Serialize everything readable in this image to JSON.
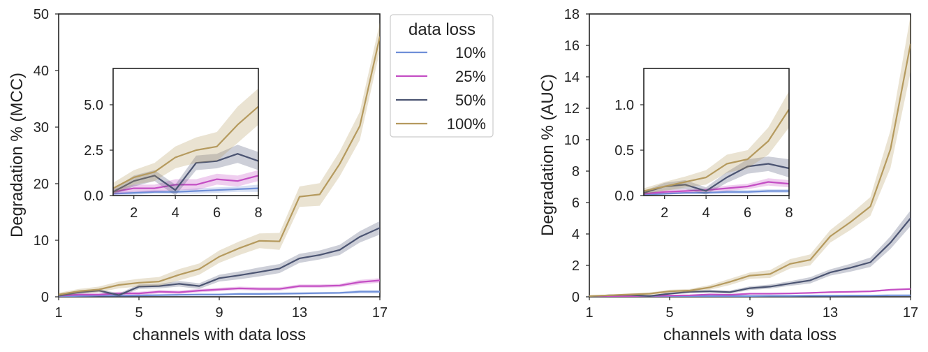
{
  "chart_data": [
    {
      "type": "line",
      "title": "",
      "xlabel": "channels with data loss",
      "ylabel": "Degradation % (MCC)",
      "xlim": [
        1,
        17
      ],
      "ylim": [
        0,
        50
      ],
      "xticks": [
        1,
        5,
        9,
        13,
        17
      ],
      "yticks": [
        0,
        10,
        20,
        30,
        40,
        50
      ],
      "x": [
        1,
        2,
        3,
        4,
        5,
        6,
        7,
        8,
        9,
        10,
        11,
        12,
        13,
        14,
        15,
        16,
        17
      ],
      "series": [
        {
          "name": "10%",
          "color": "#6f8fd8",
          "values": [
            0.1,
            0.15,
            0.2,
            0.2,
            0.25,
            0.3,
            0.35,
            0.4,
            0.4,
            0.5,
            0.5,
            0.55,
            0.6,
            0.65,
            0.7,
            0.9,
            0.9
          ],
          "band": [
            0.1,
            0.1,
            0.1,
            0.1,
            0.15,
            0.15,
            0.15,
            0.2,
            0.2,
            0.2,
            0.2,
            0.2,
            0.2,
            0.2,
            0.2,
            0.3,
            0.3
          ]
        },
        {
          "name": "25%",
          "color": "#c44ec4",
          "values": [
            0.2,
            0.4,
            0.4,
            0.6,
            0.6,
            0.9,
            0.8,
            1.1,
            1.3,
            1.5,
            1.4,
            1.4,
            1.9,
            1.9,
            2.0,
            2.6,
            2.9
          ],
          "band": [
            0.15,
            0.2,
            0.2,
            0.3,
            0.3,
            0.3,
            0.3,
            0.3,
            0.3,
            0.3,
            0.3,
            0.3,
            0.3,
            0.3,
            0.3,
            0.4,
            0.4
          ]
        },
        {
          "name": "50%",
          "color": "#4b5472",
          "values": [
            0.2,
            0.8,
            1.1,
            0.3,
            1.8,
            1.9,
            2.3,
            1.9,
            3.3,
            3.8,
            4.4,
            5.0,
            6.8,
            7.4,
            8.3,
            10.6,
            12.2
          ],
          "band": [
            0.15,
            0.3,
            0.3,
            0.3,
            0.4,
            0.4,
            0.5,
            0.5,
            0.6,
            0.7,
            0.8,
            0.8,
            0.8,
            0.8,
            0.9,
            1.0,
            1.2
          ]
        },
        {
          "name": "100%",
          "color": "#b59a5e",
          "values": [
            0.4,
            1.0,
            1.3,
            2.1,
            2.5,
            2.7,
            3.9,
            4.9,
            7.1,
            8.6,
            9.9,
            9.8,
            17.7,
            18.1,
            23.5,
            30.2,
            46.0
          ],
          "band": [
            0.3,
            0.4,
            0.5,
            0.6,
            0.7,
            0.8,
            1.0,
            1.0,
            1.1,
            1.2,
            1.3,
            1.5,
            1.8,
            2.0,
            2.2,
            2.5,
            2.5
          ]
        }
      ],
      "inset": {
        "xlim": [
          1,
          8
        ],
        "ylim": [
          0,
          7
        ],
        "xticks": [
          2,
          4,
          6,
          8
        ],
        "yticks": [
          0,
          2.5,
          5.0
        ],
        "ytick_labels": [
          "0.0",
          "2.5",
          "5.0"
        ]
      }
    },
    {
      "type": "line",
      "title": "",
      "xlabel": "channels with data loss",
      "ylabel": "Degradation % (AUC)",
      "xlim": [
        1,
        17
      ],
      "ylim": [
        0,
        18
      ],
      "xticks": [
        1,
        5,
        9,
        13,
        17
      ],
      "yticks": [
        0,
        2,
        4,
        6,
        8,
        10,
        12,
        14,
        16,
        18
      ],
      "x": [
        1,
        2,
        3,
        4,
        5,
        6,
        7,
        8,
        9,
        10,
        11,
        12,
        13,
        14,
        15,
        16,
        17
      ],
      "series": [
        {
          "name": "10%",
          "color": "#6f8fd8",
          "values": [
            0.01,
            0.02,
            0.03,
            0.03,
            0.04,
            0.04,
            0.05,
            0.05,
            0.05,
            0.06,
            0.06,
            0.07,
            0.07,
            0.08,
            0.08,
            0.1,
            0.1
          ],
          "band": [
            0.01,
            0.01,
            0.01,
            0.01,
            0.02,
            0.02,
            0.02,
            0.02,
            0.02,
            0.02,
            0.02,
            0.02,
            0.02,
            0.02,
            0.02,
            0.03,
            0.03
          ]
        },
        {
          "name": "25%",
          "color": "#c44ec4",
          "values": [
            0.02,
            0.04,
            0.05,
            0.06,
            0.08,
            0.1,
            0.15,
            0.13,
            0.2,
            0.2,
            0.22,
            0.25,
            0.3,
            0.32,
            0.35,
            0.45,
            0.5
          ],
          "band": [
            0.01,
            0.02,
            0.02,
            0.02,
            0.03,
            0.03,
            0.04,
            0.04,
            0.04,
            0.04,
            0.04,
            0.04,
            0.05,
            0.05,
            0.05,
            0.05,
            0.06
          ]
        },
        {
          "name": "50%",
          "color": "#4b5472",
          "values": [
            0.03,
            0.1,
            0.12,
            0.05,
            0.2,
            0.32,
            0.35,
            0.3,
            0.55,
            0.65,
            0.85,
            1.05,
            1.55,
            1.85,
            2.2,
            3.45,
            5.0
          ],
          "band": [
            0.02,
            0.04,
            0.05,
            0.04,
            0.06,
            0.08,
            0.08,
            0.1,
            0.12,
            0.13,
            0.15,
            0.2,
            0.2,
            0.25,
            0.3,
            0.4,
            0.5
          ]
        },
        {
          "name": "100%",
          "color": "#b59a5e",
          "values": [
            0.05,
            0.1,
            0.15,
            0.2,
            0.35,
            0.4,
            0.6,
            0.95,
            1.35,
            1.45,
            2.1,
            2.35,
            3.85,
            4.75,
            5.75,
            9.4,
            16.1
          ],
          "band": [
            0.03,
            0.05,
            0.06,
            0.08,
            0.1,
            0.1,
            0.15,
            0.2,
            0.2,
            0.25,
            0.3,
            0.35,
            0.4,
            0.5,
            0.6,
            1.2,
            1.8
          ]
        }
      ],
      "inset": {
        "xlim": [
          1,
          8
        ],
        "ylim": [
          0,
          1.4
        ],
        "xticks": [
          2,
          4,
          6,
          8
        ],
        "yticks": [
          0,
          0.5,
          1.0
        ],
        "ytick_labels": [
          "0.0",
          "0.5",
          "1.0"
        ]
      }
    }
  ],
  "legend": {
    "title": "data loss",
    "entries": [
      "10%",
      "25%",
      "50%",
      "100%"
    ]
  }
}
